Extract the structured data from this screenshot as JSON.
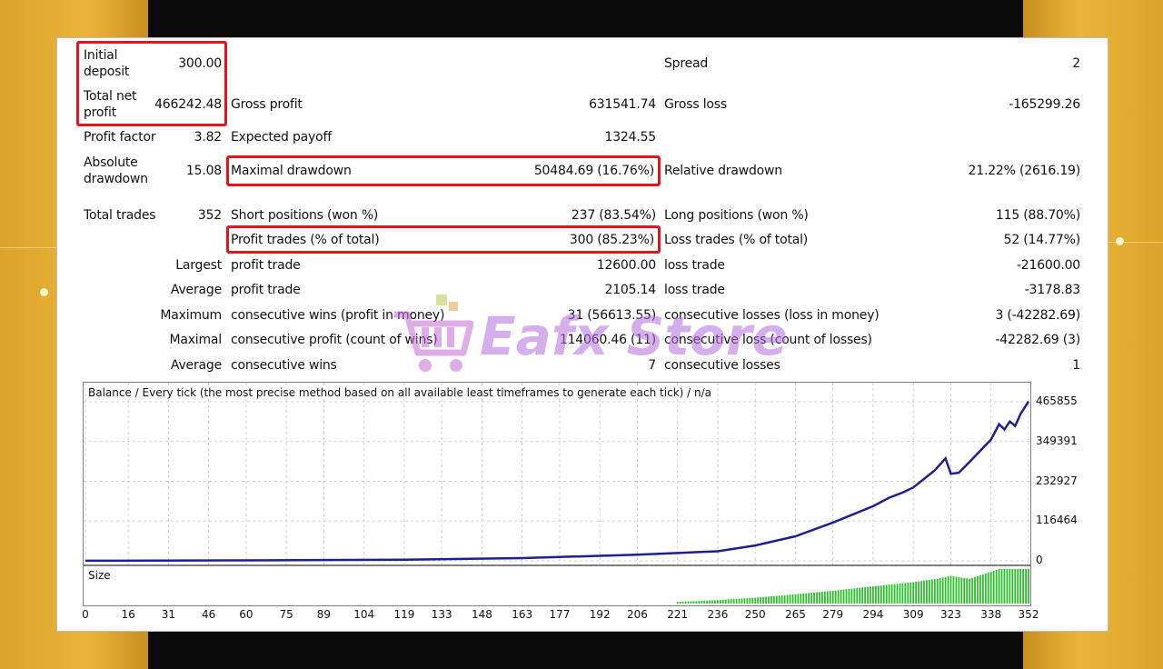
{
  "stats": {
    "initial_deposit_label": "Initial deposit",
    "initial_deposit": "300.00",
    "spread_label": "Spread",
    "spread": "2",
    "total_net_profit_label": "Total net profit",
    "total_net_profit": "466242.48",
    "gross_profit_label": "Gross profit",
    "gross_profit": "631541.74",
    "gross_loss_label": "Gross loss",
    "gross_loss": "-165299.26",
    "profit_factor_label": "Profit factor",
    "profit_factor": "3.82",
    "expected_payoff_label": "Expected payoff",
    "expected_payoff": "1324.55",
    "absolute_drawdown_label": "Absolute drawdown",
    "absolute_drawdown": "15.08",
    "maximal_drawdown_label": "Maximal drawdown",
    "maximal_drawdown": "50484.69 (16.76%)",
    "relative_drawdown_label": "Relative drawdown",
    "relative_drawdown": "21.22% (2616.19)",
    "total_trades_label": "Total trades",
    "total_trades": "352",
    "short_positions_label": "Short positions (won %)",
    "short_positions": "237 (83.54%)",
    "long_positions_label": "Long positions (won %)",
    "long_positions": "115 (88.70%)",
    "profit_trades_label": "Profit trades (% of total)",
    "profit_trades": "300 (85.23%)",
    "loss_trades_label": "Loss trades (% of total)",
    "loss_trades": "52 (14.77%)",
    "largest_label": "Largest",
    "largest_profit_label": "profit trade",
    "largest_profit": "12600.00",
    "largest_loss_label": "loss trade",
    "largest_loss": "-21600.00",
    "average_label": "Average",
    "average_profit_label": "profit trade",
    "average_profit": "2105.14",
    "average_loss_label": "loss trade",
    "average_loss": "-3178.83",
    "maximum_label": "Maximum",
    "max_cons_wins_label": "consecutive wins (profit in money)",
    "max_cons_wins": "31 (56613.55)",
    "max_cons_losses_label": "consecutive losses (loss in money)",
    "max_cons_losses": "3 (-42282.69)",
    "maximal_label": "Maximal",
    "maximal_cons_profit_label": "consecutive profit (count of wins)",
    "maximal_cons_profit": "114060.46 (11)",
    "maximal_cons_loss_label": "consecutive loss (count of losses)",
    "maximal_cons_loss": "-42282.69 (3)",
    "average2_label": "Average",
    "avg_cons_wins_label": "consecutive wins",
    "avg_cons_wins": "7",
    "avg_cons_losses_label": "consecutive losses",
    "avg_cons_losses": "1"
  },
  "watermark": {
    "text": "Eafx Store"
  },
  "colors": {
    "highlight": "#e3141b",
    "balance_line": "#1f1f8f",
    "size_bars": "#2bbf2b",
    "grid": "#d0d0d0"
  },
  "chart_data": [
    {
      "type": "line",
      "title": "Balance / Every tick (the most precise method based on all available least timeframes to generate each tick) / n/a",
      "xlabel": "",
      "ylabel": "",
      "ylim": [
        0,
        465855
      ],
      "y_ticks": [
        "465855",
        "349391",
        "232927",
        "116464",
        "0"
      ],
      "x_ticks": [
        "0",
        "16",
        "31",
        "46",
        "60",
        "75",
        "89",
        "104",
        "119",
        "133",
        "148",
        "163",
        "177",
        "192",
        "206",
        "221",
        "236",
        "250",
        "265",
        "279",
        "294",
        "309",
        "323",
        "338",
        "352"
      ],
      "xlim": [
        0,
        352
      ],
      "grid": true,
      "series": [
        {
          "x": [
            0,
            60,
            119,
            163,
            206,
            236,
            250,
            265,
            279,
            294,
            300,
            305,
            309,
            317,
            321,
            323,
            326,
            330,
            338,
            341,
            343,
            345,
            347,
            349,
            352
          ],
          "values": [
            300,
            1200,
            3500,
            8000,
            18000,
            28000,
            45000,
            72000,
            112000,
            160000,
            185000,
            200000,
            215000,
            265000,
            300000,
            255000,
            258000,
            290000,
            355000,
            400000,
            385000,
            408000,
            395000,
            430000,
            466542
          ]
        }
      ]
    },
    {
      "type": "bar",
      "title": "Size",
      "xlim": [
        0,
        352
      ],
      "x": [
        221,
        236,
        250,
        265,
        279,
        294,
        309,
        318,
        323,
        330,
        338,
        341,
        352
      ],
      "values": [
        0.05,
        0.1,
        0.17,
        0.27,
        0.37,
        0.5,
        0.62,
        0.72,
        0.8,
        0.72,
        0.92,
        1.0,
        1.0
      ]
    }
  ]
}
